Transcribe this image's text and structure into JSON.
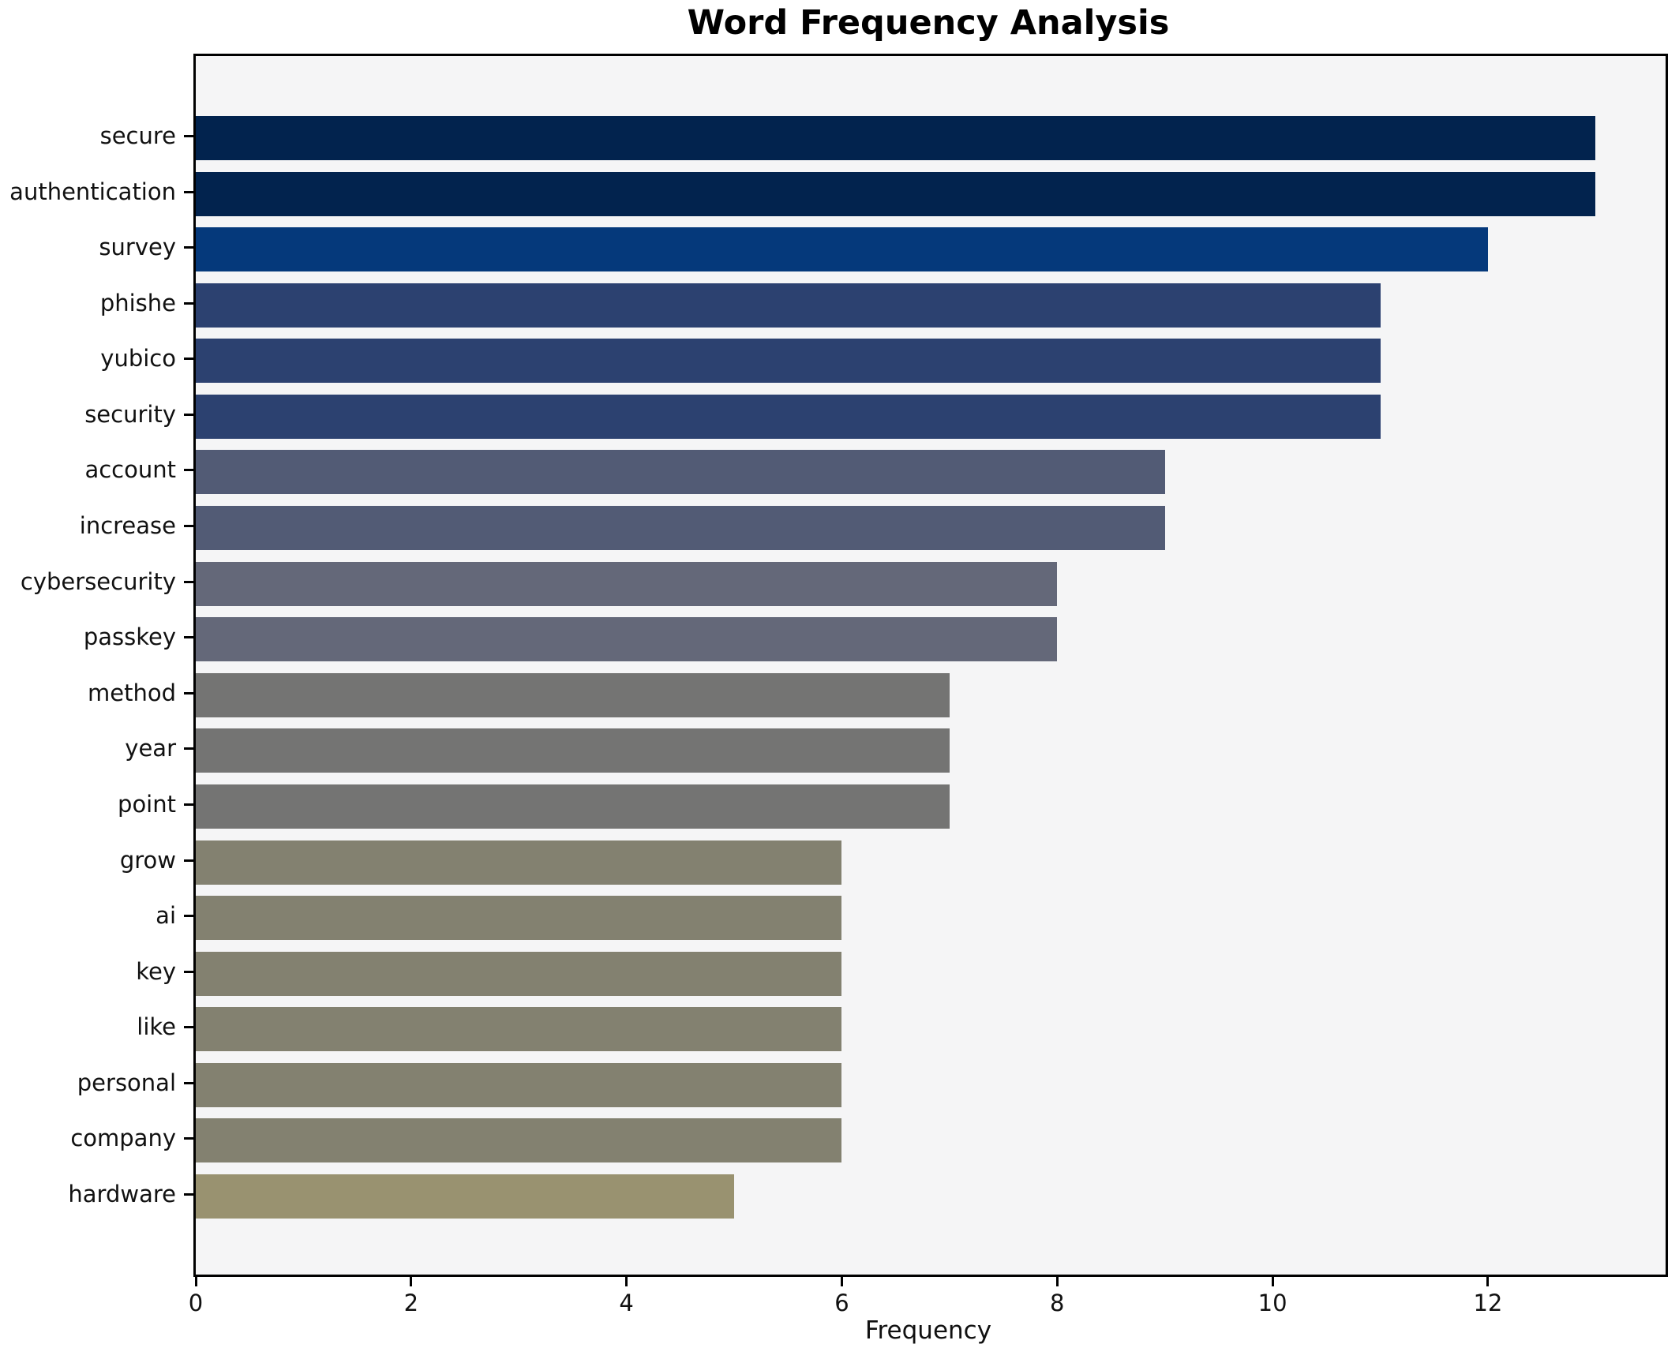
{
  "figure": {
    "title": "Word Frequency Analysis",
    "xlabel": "Frequency"
  },
  "chart_data": {
    "type": "bar",
    "orientation": "horizontal",
    "title": "Word Frequency Analysis",
    "xlabel": "Frequency",
    "ylabel": "",
    "categories": [
      "secure",
      "authentication",
      "survey",
      "phishe",
      "yubico",
      "security",
      "account",
      "increase",
      "cybersecurity",
      "passkey",
      "method",
      "year",
      "point",
      "grow",
      "ai",
      "key",
      "like",
      "personal",
      "company",
      "hardware"
    ],
    "values": [
      13,
      13,
      12,
      11,
      11,
      11,
      9,
      9,
      8,
      8,
      7,
      7,
      7,
      6,
      6,
      6,
      6,
      6,
      6,
      5
    ],
    "bar_colors": [
      "#02234e",
      "#02234e",
      "#05397b",
      "#2c4170",
      "#2c4170",
      "#2c4170",
      "#525b75",
      "#525b75",
      "#646879",
      "#646879",
      "#747473",
      "#747473",
      "#747473",
      "#838170",
      "#838170",
      "#838170",
      "#838170",
      "#838170",
      "#838170",
      "#999270"
    ],
    "xticks": [
      0,
      2,
      4,
      6,
      8,
      10,
      12
    ],
    "xlim": [
      0,
      13.65
    ],
    "grid": false,
    "legend": null,
    "plot_background": "#f5f5f6",
    "spine_color": "#000000"
  }
}
